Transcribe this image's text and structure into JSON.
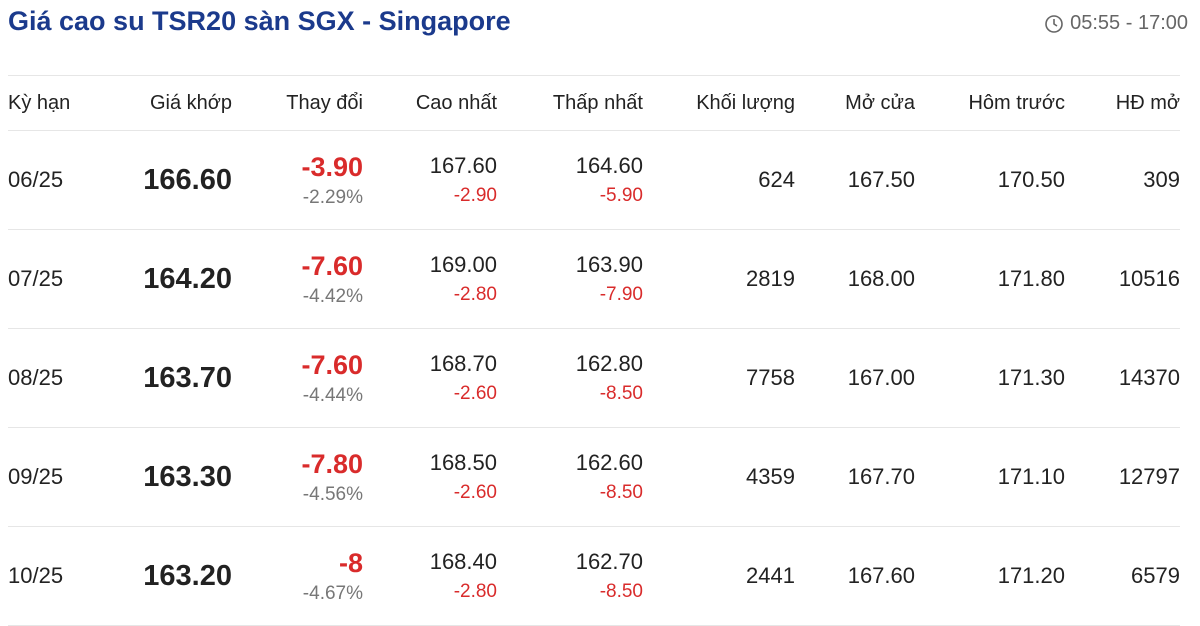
{
  "header": {
    "title": "Giá cao su TSR20 sàn SGX - Singapore",
    "time": "05:55 - 17:00"
  },
  "table": {
    "columns": [
      "Kỳ hạn",
      "Giá khớp",
      "Thay đổi",
      "Cao nhất",
      "Thấp nhất",
      "Khối lượng",
      "Mở cửa",
      "Hôm trước",
      "HĐ mở"
    ],
    "rows": [
      {
        "term": "06/25",
        "price": "166.60",
        "change": "-3.90",
        "change_pct": "-2.29%",
        "high": "167.60",
        "high_change": "-2.90",
        "low": "164.60",
        "low_change": "-5.90",
        "volume": "624",
        "open": "167.50",
        "prev": "170.50",
        "oi": "309"
      },
      {
        "term": "07/25",
        "price": "164.20",
        "change": "-7.60",
        "change_pct": "-4.42%",
        "high": "169.00",
        "high_change": "-2.80",
        "low": "163.90",
        "low_change": "-7.90",
        "volume": "2819",
        "open": "168.00",
        "prev": "171.80",
        "oi": "10516"
      },
      {
        "term": "08/25",
        "price": "163.70",
        "change": "-7.60",
        "change_pct": "-4.44%",
        "high": "168.70",
        "high_change": "-2.60",
        "low": "162.80",
        "low_change": "-8.50",
        "volume": "7758",
        "open": "167.00",
        "prev": "171.30",
        "oi": "14370"
      },
      {
        "term": "09/25",
        "price": "163.30",
        "change": "-7.80",
        "change_pct": "-4.56%",
        "high": "168.50",
        "high_change": "-2.60",
        "low": "162.60",
        "low_change": "-8.50",
        "volume": "4359",
        "open": "167.70",
        "prev": "171.10",
        "oi": "12797"
      },
      {
        "term": "10/25",
        "price": "163.20",
        "change": "-8",
        "change_pct": "-4.67%",
        "high": "168.40",
        "high_change": "-2.80",
        "low": "162.70",
        "low_change": "-8.50",
        "volume": "2441",
        "open": "167.60",
        "prev": "171.20",
        "oi": "6579"
      }
    ]
  }
}
